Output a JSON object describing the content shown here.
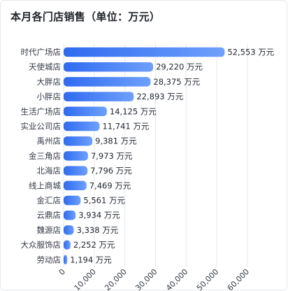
{
  "title": "本月各门店销售（单位：万元）",
  "colors": {
    "bar_start": "#2f6bf0",
    "bar_end": "#6ea0fb",
    "grid": "#e4e7ec"
  },
  "chart_data": {
    "type": "bar",
    "orientation": "horizontal",
    "title": "本月各门店销售（单位：万元）",
    "categories": [
      "时代广场店",
      "天使城店",
      "大胖店",
      "小胖店",
      "生活广场店",
      "实业公司店",
      "禹州店",
      "金三角店",
      "北海店",
      "线上商城",
      "金汇店",
      "云鼎店",
      "魏源店",
      "大众服饰店",
      "劳动店"
    ],
    "values": [
      52553,
      29220,
      28375,
      22893,
      14125,
      11741,
      9381,
      7973,
      7796,
      7469,
      5561,
      3934,
      3338,
      2252,
      1194
    ],
    "value_labels": [
      "52,553 万元",
      "29,220 万元",
      "28,375 万元",
      "22,893 万元",
      "14,125 万元",
      "11,741 万元",
      "9,381 万元",
      "7,973 万元",
      "7,796 万元",
      "7,469 万元",
      "5,561 万元",
      "3,934 万元",
      "3,338 万元",
      "2,252 万元",
      "1,194 万元"
    ],
    "xticks": [
      "0",
      "10,000",
      "20,000",
      "30,000",
      "40,000",
      "50,000",
      "60,000"
    ],
    "xlim": [
      0,
      60000
    ],
    "grid": true
  }
}
